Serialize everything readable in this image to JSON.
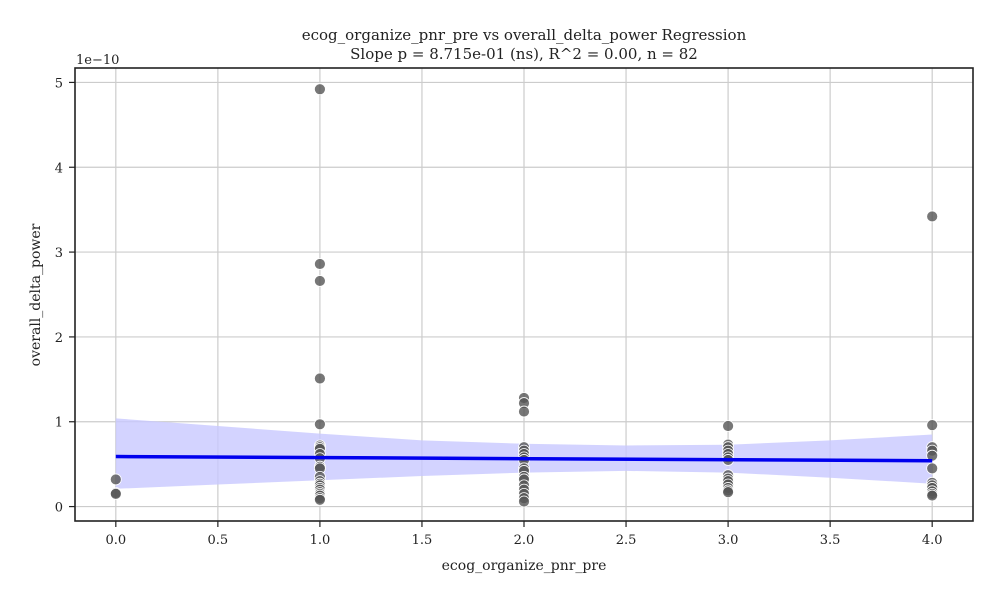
{
  "chart_data": {
    "type": "scatter",
    "title_line1": "ecog_organize_pnr_pre vs overall_delta_power Regression",
    "title_line2": "Slope p = 8.715e-01 (ns), R^2 = 0.00, n = 82",
    "xlabel": "ecog_organize_pnr_pre",
    "ylabel": "overall_delta_power",
    "y_offset_label": "1e−10",
    "xlim": [
      -0.2,
      4.2
    ],
    "ylim": [
      -0.17,
      5.17
    ],
    "y_scale_exponent": -10,
    "grid": true,
    "x_ticks": [
      0.0,
      0.5,
      1.0,
      1.5,
      2.0,
      2.5,
      3.0,
      3.5,
      4.0
    ],
    "x_tick_labels": [
      "0.0",
      "0.5",
      "1.0",
      "1.5",
      "2.0",
      "2.5",
      "3.0",
      "3.5",
      "4.0"
    ],
    "y_ticks": [
      0,
      1,
      2,
      3,
      4,
      5
    ],
    "y_tick_labels": [
      "0",
      "1",
      "2",
      "3",
      "4",
      "5"
    ],
    "points": [
      {
        "x": 0,
        "y": 0.32
      },
      {
        "x": 0,
        "y": 0.16
      },
      {
        "x": 0,
        "y": 0.15
      },
      {
        "x": 1,
        "y": 4.92
      },
      {
        "x": 1,
        "y": 2.86
      },
      {
        "x": 1,
        "y": 2.66
      },
      {
        "x": 1,
        "y": 1.51
      },
      {
        "x": 1,
        "y": 0.97
      },
      {
        "x": 1,
        "y": 0.72
      },
      {
        "x": 1,
        "y": 0.7
      },
      {
        "x": 1,
        "y": 0.68
      },
      {
        "x": 1,
        "y": 0.62
      },
      {
        "x": 1,
        "y": 0.57
      },
      {
        "x": 1,
        "y": 0.47
      },
      {
        "x": 1,
        "y": 0.45
      },
      {
        "x": 1,
        "y": 0.35
      },
      {
        "x": 1,
        "y": 0.3
      },
      {
        "x": 1,
        "y": 0.27
      },
      {
        "x": 1,
        "y": 0.25
      },
      {
        "x": 1,
        "y": 0.22
      },
      {
        "x": 1,
        "y": 0.2
      },
      {
        "x": 1,
        "y": 0.17
      },
      {
        "x": 1,
        "y": 0.15
      },
      {
        "x": 1,
        "y": 0.13
      },
      {
        "x": 1,
        "y": 0.1
      },
      {
        "x": 1,
        "y": 0.08
      },
      {
        "x": 2,
        "y": 1.28
      },
      {
        "x": 2,
        "y": 1.22
      },
      {
        "x": 2,
        "y": 1.12
      },
      {
        "x": 2,
        "y": 0.7
      },
      {
        "x": 2,
        "y": 0.66
      },
      {
        "x": 2,
        "y": 0.62
      },
      {
        "x": 2,
        "y": 0.58
      },
      {
        "x": 2,
        "y": 0.55
      },
      {
        "x": 2,
        "y": 0.45
      },
      {
        "x": 2,
        "y": 0.42
      },
      {
        "x": 2,
        "y": 0.35
      },
      {
        "x": 2,
        "y": 0.32
      },
      {
        "x": 2,
        "y": 0.25
      },
      {
        "x": 2,
        "y": 0.2
      },
      {
        "x": 2,
        "y": 0.15
      },
      {
        "x": 2,
        "y": 0.1
      },
      {
        "x": 2,
        "y": 0.06
      },
      {
        "x": 3,
        "y": 0.95
      },
      {
        "x": 3,
        "y": 0.73
      },
      {
        "x": 3,
        "y": 0.7
      },
      {
        "x": 3,
        "y": 0.66
      },
      {
        "x": 3,
        "y": 0.62
      },
      {
        "x": 3,
        "y": 0.58
      },
      {
        "x": 3,
        "y": 0.55
      },
      {
        "x": 3,
        "y": 0.37
      },
      {
        "x": 3,
        "y": 0.33
      },
      {
        "x": 3,
        "y": 0.3
      },
      {
        "x": 3,
        "y": 0.26
      },
      {
        "x": 3,
        "y": 0.22
      },
      {
        "x": 3,
        "y": 0.19
      },
      {
        "x": 3,
        "y": 0.17
      },
      {
        "x": 4,
        "y": 3.42
      },
      {
        "x": 4,
        "y": 0.96
      },
      {
        "x": 4,
        "y": 0.7
      },
      {
        "x": 4,
        "y": 0.66
      },
      {
        "x": 4,
        "y": 0.6
      },
      {
        "x": 4,
        "y": 0.45
      },
      {
        "x": 4,
        "y": 0.28
      },
      {
        "x": 4,
        "y": 0.25
      },
      {
        "x": 4,
        "y": 0.22
      },
      {
        "x": 4,
        "y": 0.18
      },
      {
        "x": 4,
        "y": 0.15
      },
      {
        "x": 4,
        "y": 0.13
      }
    ],
    "regression_line": {
      "x": [
        0,
        4
      ],
      "y": [
        0.59,
        0.54
      ]
    },
    "confidence_band": {
      "x": [
        0,
        0.5,
        1,
        1.5,
        2,
        2.5,
        3,
        3.5,
        4
      ],
      "upper": [
        1.04,
        0.95,
        0.86,
        0.78,
        0.74,
        0.72,
        0.73,
        0.78,
        0.85
      ],
      "lower": [
        0.21,
        0.26,
        0.31,
        0.36,
        0.4,
        0.42,
        0.4,
        0.34,
        0.27
      ]
    },
    "colors": {
      "points": "#555555",
      "point_edge": "#ffffff",
      "line": "#0000ee",
      "band": "#c8c8ff",
      "grid": "#cccccc",
      "axes": "#222222"
    }
  }
}
